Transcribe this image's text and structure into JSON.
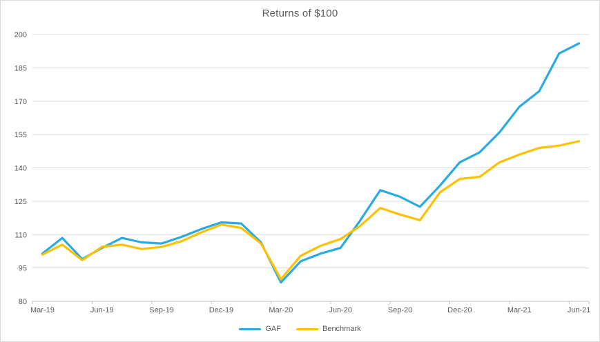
{
  "chart_data": {
    "type": "line",
    "title": "Returns of $100",
    "categories": [
      "Mar-19",
      "Apr-19",
      "May-19",
      "Jun-19",
      "Jul-19",
      "Aug-19",
      "Sep-19",
      "Oct-19",
      "Nov-19",
      "Dec-19",
      "Jan-20",
      "Feb-20",
      "Mar-20",
      "Apr-20",
      "May-20",
      "Jun-20",
      "Jul-20",
      "Aug-20",
      "Sep-20",
      "Oct-20",
      "Nov-20",
      "Dec-20",
      "Jan-21",
      "Feb-21",
      "Mar-21",
      "Apr-21",
      "May-21",
      "Jun-21"
    ],
    "x_tick_labels": [
      "Mar-19",
      "Jun-19",
      "Sep-19",
      "Dec-19",
      "Mar-20",
      "Jun-20",
      "Sep-20",
      "Dec-20",
      "Mar-21",
      "Jun-21"
    ],
    "x_label_every": 3,
    "y_ticks": [
      80,
      95,
      110,
      125,
      140,
      155,
      170,
      185,
      200
    ],
    "ylim": [
      80,
      200
    ],
    "grid": true,
    "legend_position": "bottom",
    "series": [
      {
        "name": "GAF",
        "color": "#29ABE2",
        "values": [
          101.5,
          108.5,
          99,
          104,
          108.5,
          106.5,
          106,
          109,
          112.5,
          115.5,
          115,
          106.5,
          88.5,
          98,
          101.5,
          104,
          116.5,
          130,
          127,
          122.5,
          132,
          142.5,
          147,
          156,
          167.5,
          174.5,
          191.5,
          196
        ]
      },
      {
        "name": "Benchmark",
        "color": "#FFC000",
        "values": [
          101,
          105.5,
          98.5,
          104.5,
          105.5,
          103.5,
          104.5,
          107,
          111,
          114.5,
          113,
          106,
          90,
          100.5,
          105,
          108,
          114,
          122,
          119,
          116.5,
          129,
          135,
          136,
          142.5,
          146,
          149,
          150,
          152
        ]
      }
    ],
    "colors": {
      "gridline": "#d9d9d9",
      "axis_line": "#bfbfbf",
      "axis_text": "#595959",
      "frame_border": "#d9d9d9"
    }
  }
}
